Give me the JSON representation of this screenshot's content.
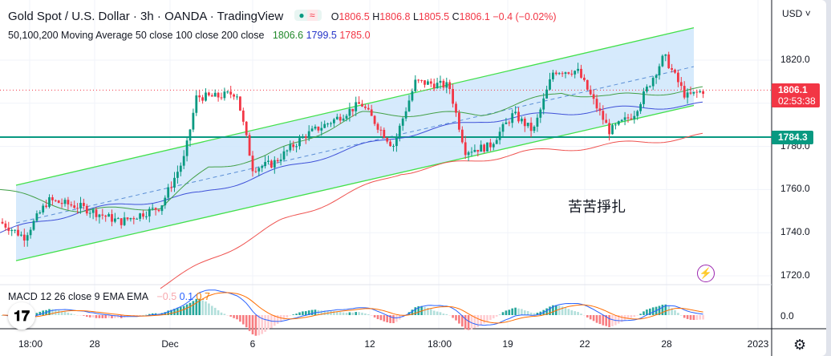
{
  "header": {
    "title": "Gold Spot / U.S. Dollar · 3h · OANDA · TradingView",
    "open_label": "O",
    "open": "1806.5",
    "high_label": "H",
    "high": "1806.8",
    "low_label": "L",
    "low": "1805.5",
    "close_label": "C",
    "close": "1806.1",
    "change": "−0.4 (−0.02%)"
  },
  "ma": {
    "label": "50,100,200 Moving Average 50 close 100 close 200 close",
    "ma50": "1806.6",
    "ma100": "1799.5",
    "ma200": "1785.0"
  },
  "macd": {
    "label": "MACD 12 26 close 9 EMA EMA",
    "hist": "−0.5",
    "macd": "0.1",
    "signal": "0.7",
    "zero_label": "0.0"
  },
  "price_axis": {
    "currency": "USD",
    "ticks": [
      "1820.0",
      "1780.0",
      "1760.0",
      "1740.0",
      "1720.0"
    ],
    "last_price": "1806.1",
    "countdown": "02:53:38",
    "hline_price": "1784.3"
  },
  "time_axis": [
    "18:00",
    "28",
    "Dec",
    "6",
    "12",
    "18:00",
    "19",
    "22",
    "28",
    "2023"
  ],
  "annotation": "苦苦掙扎",
  "logo": "TV",
  "colors": {
    "up": "#089981",
    "down": "#f23645",
    "ma50": "#43a047",
    "ma100": "#3f51d8",
    "ma200": "#ef5350",
    "channel": "#42e04a"
  },
  "chart_data": {
    "type": "candlestick",
    "symbol": "XAUUSD",
    "interval": "3h",
    "price_path": [
      [
        0,
        1745
      ],
      [
        30,
        1738
      ],
      [
        60,
        1755
      ],
      [
        100,
        1752
      ],
      [
        150,
        1745
      ],
      [
        200,
        1752
      ],
      [
        230,
        1775
      ],
      [
        245,
        1803
      ],
      [
        270,
        1803
      ],
      [
        295,
        1805
      ],
      [
        315,
        1770
      ],
      [
        340,
        1772
      ],
      [
        380,
        1785
      ],
      [
        420,
        1793
      ],
      [
        450,
        1800
      ],
      [
        490,
        1780
      ],
      [
        518,
        1810
      ],
      [
        560,
        1808
      ],
      [
        580,
        1778
      ],
      [
        610,
        1780
      ],
      [
        640,
        1795
      ],
      [
        665,
        1787
      ],
      [
        690,
        1815
      ],
      [
        720,
        1815
      ],
      [
        760,
        1787
      ],
      [
        790,
        1795
      ],
      [
        828,
        1822
      ],
      [
        855,
        1803
      ],
      [
        878,
        1806
      ]
    ],
    "ma50_path": [
      [
        0,
        1760
      ],
      [
        100,
        1750
      ],
      [
        200,
        1752
      ],
      [
        260,
        1770
      ],
      [
        330,
        1775
      ],
      [
        450,
        1795
      ],
      [
        520,
        1795
      ],
      [
        600,
        1795
      ],
      [
        700,
        1805
      ],
      [
        760,
        1803
      ],
      [
        878,
        1806.6
      ]
    ],
    "ma100_path": [
      [
        0,
        1740
      ],
      [
        100,
        1750
      ],
      [
        250,
        1758
      ],
      [
        400,
        1775
      ],
      [
        500,
        1785
      ],
      [
        600,
        1792
      ],
      [
        750,
        1797
      ],
      [
        878,
        1799.5
      ]
    ],
    "ma200_path": [
      [
        200,
        1715
      ],
      [
        350,
        1745
      ],
      [
        500,
        1768
      ],
      [
        650,
        1777
      ],
      [
        800,
        1782
      ],
      [
        878,
        1785
      ]
    ],
    "channel_upper": [
      [
        20,
        1762
      ],
      [
        865,
        1835
      ]
    ],
    "channel_lower": [
      [
        20,
        1727
      ],
      [
        865,
        1799
      ]
    ],
    "hline": 1784.3
  }
}
